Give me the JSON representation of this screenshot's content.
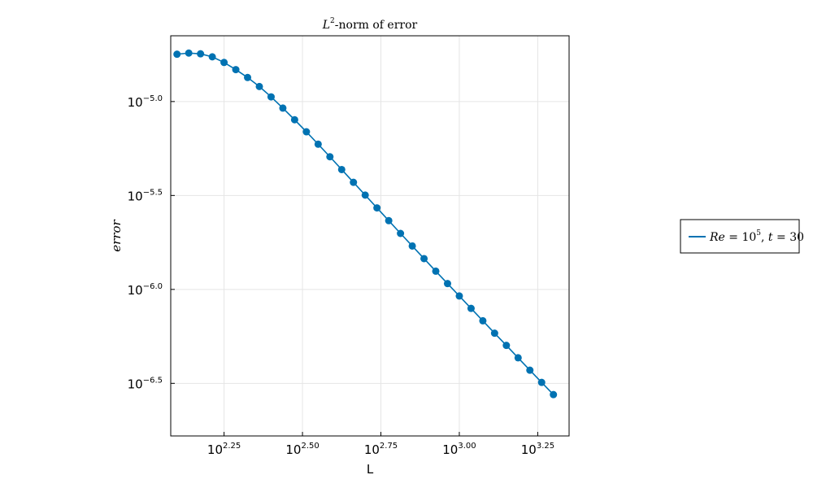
{
  "chart_data": {
    "type": "line",
    "title": {
      "main": "-norm of error",
      "symbol": "L",
      "superscript": "2"
    },
    "xlabel": "L",
    "ylabel": "error",
    "x_scale": "log10",
    "y_scale": "log10",
    "xlim_log10": [
      2.08,
      3.35
    ],
    "ylim_log10": [
      -6.78,
      -4.65
    ],
    "x_ticks": [
      {
        "base": "10",
        "exp": "2.25",
        "log10": 2.25
      },
      {
        "base": "10",
        "exp": "2.50",
        "log10": 2.5
      },
      {
        "base": "10",
        "exp": "2.75",
        "log10": 2.75
      },
      {
        "base": "10",
        "exp": "3.00",
        "log10": 3.0
      },
      {
        "base": "10",
        "exp": "3.25",
        "log10": 3.25
      }
    ],
    "y_ticks": [
      {
        "base": "10",
        "exp": "−5.0",
        "log10": -5.0
      },
      {
        "base": "10",
        "exp": "−5.5",
        "log10": -5.5
      },
      {
        "base": "10",
        "exp": "−6.0",
        "log10": -6.0
      },
      {
        "base": "10",
        "exp": "−6.5",
        "log10": -6.5
      }
    ],
    "grid": true,
    "legend_position": "outside-right",
    "legend": {
      "parts": [
        {
          "text": "Re",
          "style": "italic"
        },
        {
          "text": " = 10",
          "style": "normal"
        },
        {
          "text": "5",
          "style": "sup"
        },
        {
          "text": ", ",
          "style": "normal"
        },
        {
          "text": "t",
          "style": "italic"
        },
        {
          "text": " = 30",
          "style": "normal"
        }
      ]
    },
    "series": [
      {
        "color": "#0072b2",
        "marker": "circle",
        "log10_x": [
          2.1,
          2.1375,
          2.175,
          2.2125,
          2.25,
          2.2875,
          2.325,
          2.3625,
          2.4,
          2.4375,
          2.475,
          2.5125,
          2.55,
          2.5875,
          2.625,
          2.6625,
          2.7,
          2.7375,
          2.775,
          2.8125,
          2.85,
          2.8875,
          2.925,
          2.9625,
          3.0,
          3.0375,
          3.075,
          3.1125,
          3.15,
          3.1875,
          3.225,
          3.2625,
          3.3
        ],
        "log10_y": [
          -4.748,
          -4.742,
          -4.746,
          -4.762,
          -4.792,
          -4.83,
          -4.872,
          -4.92,
          -4.975,
          -5.035,
          -5.097,
          -5.161,
          -5.227,
          -5.294,
          -5.362,
          -5.43,
          -5.498,
          -5.566,
          -5.634,
          -5.702,
          -5.769,
          -5.836,
          -5.903,
          -5.969,
          -6.035,
          -6.101,
          -6.167,
          -6.233,
          -6.298,
          -6.364,
          -6.43,
          -6.495,
          -6.56
        ]
      }
    ]
  }
}
